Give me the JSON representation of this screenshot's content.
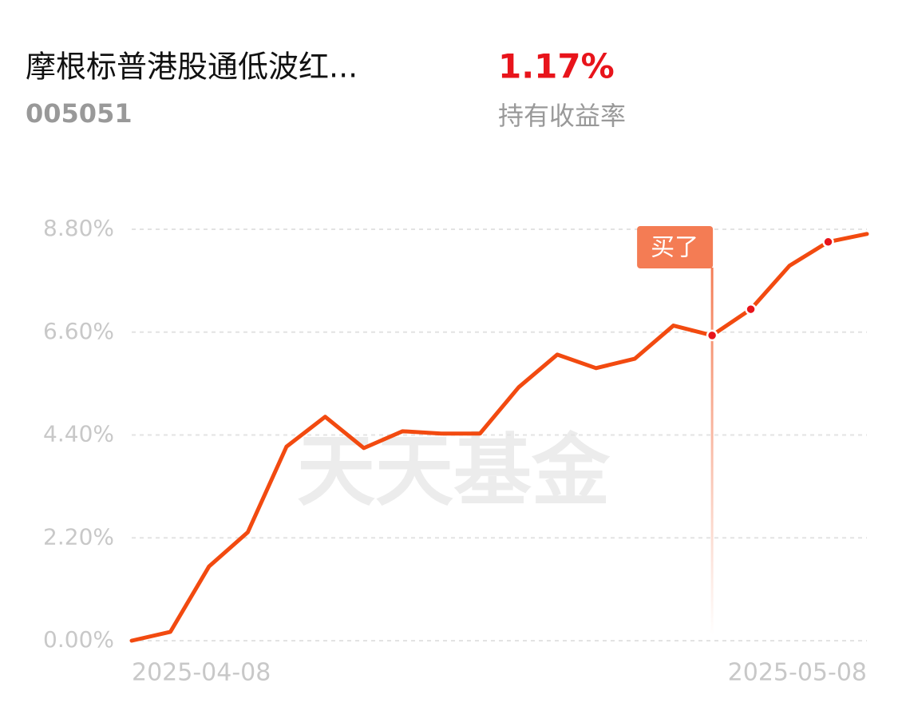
{
  "header": {
    "title": "摩根标普港股通低波红...",
    "code": "005051",
    "return_value": 1.17,
    "return_value_label": "1.17%",
    "return_label": "持有收益率"
  },
  "chart_data": {
    "type": "line",
    "categories": [
      "2025-04-08",
      null,
      null,
      null,
      null,
      null,
      null,
      null,
      null,
      null,
      null,
      null,
      null,
      null,
      null,
      null,
      null,
      null,
      null,
      "2025-05-08"
    ],
    "series": [
      {
        "color": "#f24a10",
        "values": [
          0.0,
          0.19,
          1.59,
          2.32,
          4.15,
          4.79,
          4.12,
          4.48,
          4.43,
          4.43,
          5.42,
          6.12,
          5.83,
          6.03,
          6.74,
          6.53,
          7.09,
          8.02,
          8.53,
          8.7
        ]
      }
    ],
    "ylim": [
      0,
      8.8
    ],
    "yticks": [
      {
        "value": 0,
        "label": "0.00%"
      },
      {
        "value": 2.2,
        "label": "2.20%"
      },
      {
        "value": 4.4,
        "label": "4.40%"
      },
      {
        "value": 6.6,
        "label": "6.60%"
      },
      {
        "value": 8.8,
        "label": "8.80%"
      }
    ],
    "grid": true,
    "markers": [
      15,
      16,
      18
    ],
    "annotation": {
      "text": "买了",
      "index": 15
    },
    "watermark": "天天基金"
  }
}
